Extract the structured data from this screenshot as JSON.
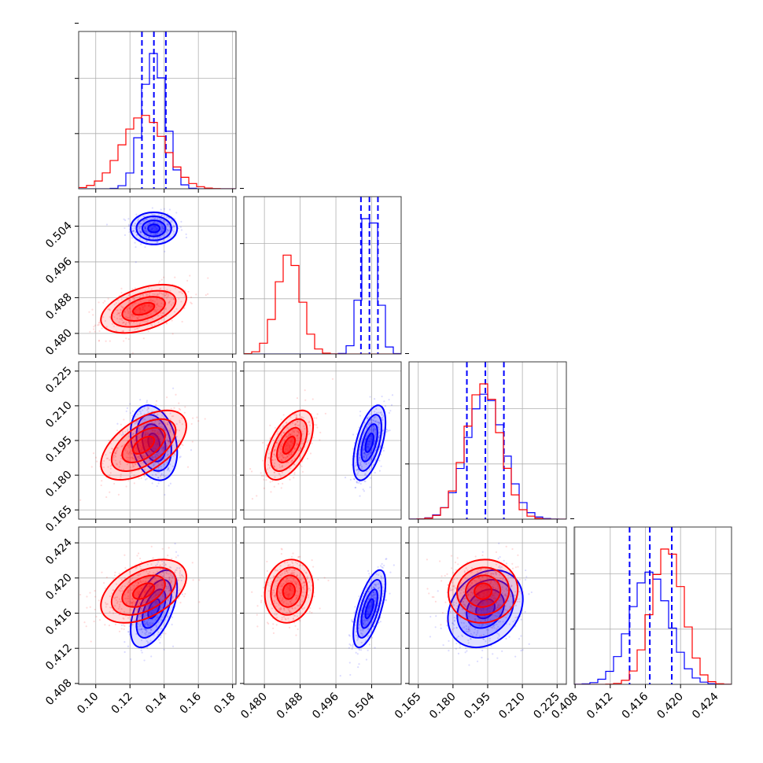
{
  "chart_data": {
    "type": "corner",
    "grid": true,
    "colors": {
      "run_a": "#0000ff",
      "run_b": "#ff0000"
    },
    "parameters": [
      {
        "range": [
          0.09,
          0.182
        ],
        "ticks": [
          0.1,
          0.12,
          0.14,
          0.16,
          0.18
        ],
        "tick_labels": [
          "0.10",
          "0.12",
          "0.14",
          "0.16",
          "0.18"
        ]
      },
      {
        "range": [
          0.4754,
          0.5106
        ],
        "ticks": [
          0.48,
          0.488,
          0.496,
          0.504
        ],
        "tick_labels": [
          "0.480",
          "0.488",
          "0.496",
          "0.504"
        ]
      },
      {
        "range": [
          0.161,
          0.229
        ],
        "ticks": [
          0.165,
          0.18,
          0.195,
          0.21,
          0.225
        ],
        "tick_labels": [
          "0.165",
          "0.180",
          "0.195",
          "0.210",
          "0.225"
        ]
      },
      {
        "range": [
          0.4079,
          0.4258
        ],
        "ticks": [
          0.408,
          0.412,
          0.416,
          0.42,
          0.424
        ],
        "tick_labels": [
          "0.408",
          "0.412",
          "0.416",
          "0.420",
          "0.424"
        ]
      }
    ],
    "series": [
      {
        "color_key": "run_a",
        "means": [
          0.134,
          0.5035,
          0.194,
          0.4165
        ],
        "stds": [
          0.0068,
          0.0018,
          0.0081,
          0.0022
        ],
        "correlations": [
          [
            0,
            1,
            0.0
          ],
          [
            0,
            2,
            -0.25
          ],
          [
            0,
            3,
            0.55
          ],
          [
            1,
            2,
            0.55
          ],
          [
            1,
            3,
            0.65
          ],
          [
            2,
            3,
            0.25
          ]
        ],
        "quantiles": [
          [
            0.127,
            0.134,
            0.141
          ],
          [
            0.5016,
            0.5035,
            0.5054
          ],
          [
            0.186,
            0.194,
            0.202
          ],
          [
            0.4142,
            0.4165,
            0.419
          ]
        ]
      },
      {
        "color_key": "run_b",
        "means": [
          0.128,
          0.4855,
          0.193,
          0.4185
        ],
        "stds": [
          0.0125,
          0.0027,
          0.0075,
          0.0018
        ],
        "correlations": [
          [
            0,
            1,
            0.45
          ],
          [
            0,
            2,
            0.55
          ],
          [
            0,
            3,
            0.45
          ],
          [
            1,
            2,
            0.55
          ],
          [
            1,
            3,
            0.1
          ],
          [
            2,
            3,
            0.05
          ]
        ],
        "quantiles": []
      }
    ],
    "contour_levels": [
      0.5,
      1.0,
      1.5,
      2.0
    ]
  }
}
